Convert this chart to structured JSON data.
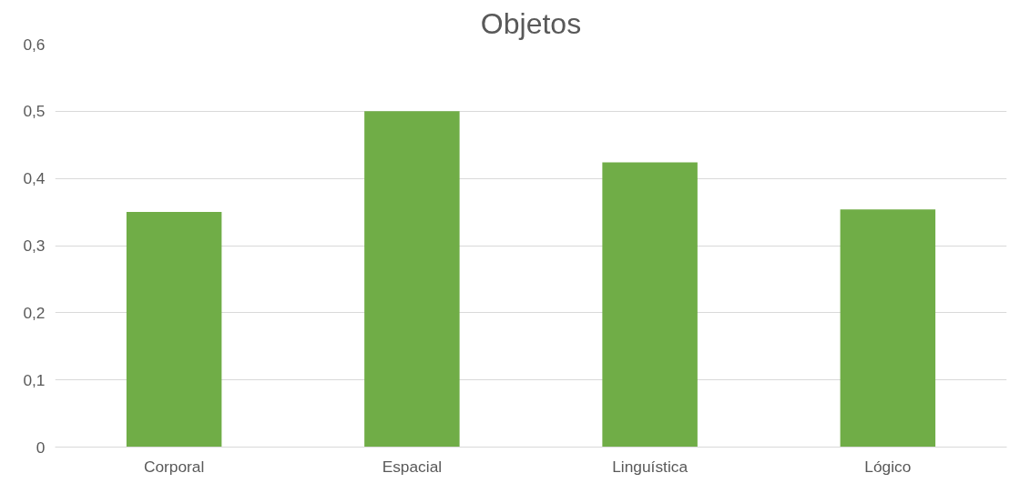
{
  "chart_data": {
    "type": "bar",
    "title": "Objetos",
    "categories": [
      "Corporal",
      "Espacial",
      "Linguística",
      "Lógico"
    ],
    "values": [
      0.35,
      0.5,
      0.424,
      0.354
    ],
    "color": "#70ad47",
    "ylim": [
      0,
      0.6
    ],
    "yticks": [
      {
        "value": 0,
        "label": "0"
      },
      {
        "value": 0.1,
        "label": "0,1"
      },
      {
        "value": 0.2,
        "label": "0,2"
      },
      {
        "value": 0.3,
        "label": "0,3"
      },
      {
        "value": 0.4,
        "label": "0,4"
      },
      {
        "value": 0.5,
        "label": "0,5"
      },
      {
        "value": 0.6,
        "label": "0,6"
      }
    ],
    "grid": "y"
  }
}
